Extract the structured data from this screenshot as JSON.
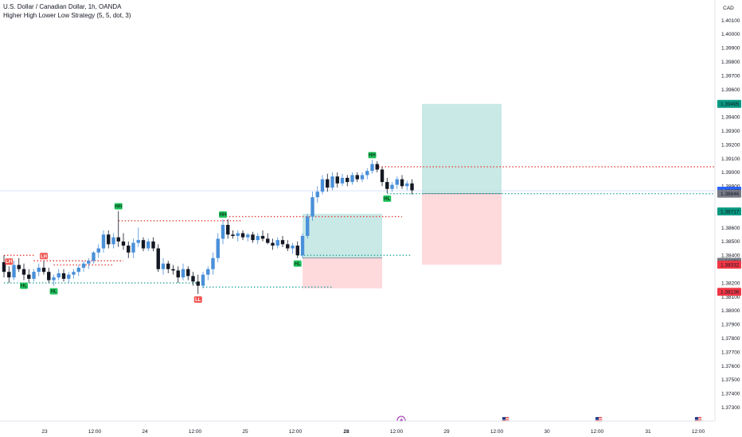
{
  "header": {
    "symbol_line": "U.S. Dollar / Canadian Dollar, 1h, OANDA",
    "indicator_line": "Higher High Lower Low Strategy (5, 5, dot, 3)"
  },
  "currency_label": "CAD",
  "colors": {
    "up": "#2962ff",
    "up_light": "#4a90d9",
    "down": "#131722",
    "bull_tag": "#22c55e",
    "bear_tag": "#ef5350",
    "red_dots": "#e53935",
    "green_dots": "#26a69a",
    "profit_zone": "#b2dfdb",
    "loss_zone": "#ffcdd2",
    "price_tag_blue": "#2962ff",
    "price_tag_green": "#089981",
    "price_tag_red": "#f23645",
    "price_tag_gray": "#787b86"
  },
  "chart_data": {
    "type": "candlestick",
    "y_axis": {
      "min": 1.373,
      "max": 1.402,
      "ticks": [
        "1.40100",
        "1.40000",
        "1.39900",
        "1.39800",
        "1.39700",
        "1.39600",
        "1.39400",
        "1.39300",
        "1.39200",
        "1.39100",
        "1.39000",
        "1.38900",
        "1.38600",
        "1.38500",
        "1.38400",
        "1.38200",
        "1.38100",
        "1.38000",
        "1.37900",
        "1.37800",
        "1.37700",
        "1.37600",
        "1.37500",
        "1.37400",
        "1.37300"
      ]
    },
    "x_axis": {
      "labels": [
        "23",
        "12:00",
        "24",
        "12:00",
        "25",
        "12:00",
        "28",
        "12:00",
        "29",
        "12:00",
        "30",
        "12:00",
        "31",
        "12:00"
      ],
      "bold_labels": [
        "28"
      ]
    },
    "price_tags": [
      {
        "value": "1.39495",
        "color": "#089981"
      },
      {
        "value": "1.38867",
        "color": "#2962ff"
      },
      {
        "value": "1.38846",
        "color": "#787b86"
      },
      {
        "value": "1.38717",
        "color": "#089981"
      },
      {
        "value": "1.38353",
        "color": "#787b86"
      },
      {
        "value": "1.38332",
        "color": "#f23645"
      },
      {
        "value": "1.38136",
        "color": "#f23645"
      }
    ],
    "candles": [
      [
        1.3835,
        1.384,
        1.3824,
        1.3828
      ],
      [
        1.3828,
        1.3832,
        1.382,
        1.3824
      ],
      [
        1.3824,
        1.3836,
        1.3822,
        1.3833
      ],
      [
        1.3833,
        1.3838,
        1.3828,
        1.383
      ],
      [
        1.383,
        1.3834,
        1.3822,
        1.3826
      ],
      [
        1.3826,
        1.383,
        1.382,
        1.3823
      ],
      [
        1.3823,
        1.383,
        1.3821,
        1.3828
      ],
      [
        1.3828,
        1.3834,
        1.3825,
        1.3831
      ],
      [
        1.3831,
        1.3836,
        1.3826,
        1.3828
      ],
      [
        1.3828,
        1.3831,
        1.382,
        1.3822
      ],
      [
        1.3822,
        1.3826,
        1.3818,
        1.3824
      ],
      [
        1.3824,
        1.383,
        1.3822,
        1.3827
      ],
      [
        1.3827,
        1.383,
        1.3821,
        1.3823
      ],
      [
        1.3823,
        1.3828,
        1.382,
        1.3826
      ],
      [
        1.3826,
        1.383,
        1.3823,
        1.3828
      ],
      [
        1.3828,
        1.3833,
        1.3825,
        1.3831
      ],
      [
        1.3831,
        1.3836,
        1.3828,
        1.3834
      ],
      [
        1.3834,
        1.3838,
        1.383,
        1.3836
      ],
      [
        1.3836,
        1.3843,
        1.3834,
        1.3842
      ],
      [
        1.3842,
        1.3848,
        1.3838,
        1.3845
      ],
      [
        1.3845,
        1.3858,
        1.3842,
        1.3855
      ],
      [
        1.3855,
        1.3858,
        1.3845,
        1.3848
      ],
      [
        1.3848,
        1.3856,
        1.3845,
        1.3853
      ],
      [
        1.3853,
        1.3872,
        1.3846,
        1.385
      ],
      [
        1.385,
        1.3856,
        1.3844,
        1.3847
      ],
      [
        1.3847,
        1.385,
        1.3838,
        1.3842
      ],
      [
        1.3842,
        1.3852,
        1.3838,
        1.3849
      ],
      [
        1.3849,
        1.386,
        1.3846,
        1.3851
      ],
      [
        1.3851,
        1.3853,
        1.3843,
        1.3845
      ],
      [
        1.3845,
        1.3852,
        1.3843,
        1.385
      ],
      [
        1.385,
        1.3853,
        1.3843,
        1.3845
      ],
      [
        1.3845,
        1.3848,
        1.3828,
        1.383
      ],
      [
        1.383,
        1.3838,
        1.3826,
        1.3834
      ],
      [
        1.3834,
        1.3836,
        1.3827,
        1.383
      ],
      [
        1.383,
        1.3833,
        1.3826,
        1.3829
      ],
      [
        1.3829,
        1.3832,
        1.382,
        1.3824
      ],
      [
        1.3824,
        1.3834,
        1.3822,
        1.383
      ],
      [
        1.383,
        1.3832,
        1.3822,
        1.3825
      ],
      [
        1.3825,
        1.3828,
        1.3818,
        1.3821
      ],
      [
        1.3821,
        1.3826,
        1.3812,
        1.3818
      ],
      [
        1.3818,
        1.3828,
        1.3816,
        1.3826
      ],
      [
        1.3826,
        1.3832,
        1.3822,
        1.383
      ],
      [
        1.383,
        1.3842,
        1.3826,
        1.3838
      ],
      [
        1.3838,
        1.3856,
        1.3835,
        1.3852
      ],
      [
        1.3852,
        1.3866,
        1.3848,
        1.3862
      ],
      [
        1.3862,
        1.3866,
        1.3852,
        1.3855
      ],
      [
        1.3855,
        1.3858,
        1.3852,
        1.3854
      ],
      [
        1.3854,
        1.3858,
        1.385,
        1.3856
      ],
      [
        1.3856,
        1.3858,
        1.3851,
        1.3853
      ],
      [
        1.3853,
        1.3856,
        1.385,
        1.3855
      ],
      [
        1.3855,
        1.3857,
        1.3849,
        1.3851
      ],
      [
        1.3851,
        1.3856,
        1.3848,
        1.3854
      ],
      [
        1.3854,
        1.3858,
        1.385,
        1.3852
      ],
      [
        1.3852,
        1.3856,
        1.3848,
        1.3849
      ],
      [
        1.3849,
        1.3852,
        1.3844,
        1.3847
      ],
      [
        1.3847,
        1.3853,
        1.3845,
        1.3851
      ],
      [
        1.3851,
        1.3854,
        1.3846,
        1.3848
      ],
      [
        1.3848,
        1.3851,
        1.3843,
        1.3845
      ],
      [
        1.3845,
        1.3849,
        1.3841,
        1.3847
      ],
      [
        1.3847,
        1.385,
        1.3838,
        1.384
      ],
      [
        1.384,
        1.3856,
        1.3838,
        1.3854
      ],
      [
        1.3854,
        1.387,
        1.3852,
        1.3868
      ],
      [
        1.3868,
        1.3886,
        1.3865,
        1.3882
      ],
      [
        1.3882,
        1.389,
        1.3878,
        1.3886
      ],
      [
        1.3886,
        1.3898,
        1.3884,
        1.3895
      ],
      [
        1.3895,
        1.3899,
        1.3886,
        1.3889
      ],
      [
        1.3889,
        1.39,
        1.3887,
        1.3897
      ],
      [
        1.3897,
        1.39,
        1.3889,
        1.3892
      ],
      [
        1.3892,
        1.3899,
        1.389,
        1.3896
      ],
      [
        1.3896,
        1.3898,
        1.389,
        1.3893
      ],
      [
        1.3893,
        1.39,
        1.3891,
        1.3898
      ],
      [
        1.3898,
        1.39,
        1.3893,
        1.3895
      ],
      [
        1.3895,
        1.39,
        1.3893,
        1.3898
      ],
      [
        1.3898,
        1.3903,
        1.3895,
        1.3901
      ],
      [
        1.3901,
        1.3909,
        1.3899,
        1.3906
      ],
      [
        1.3906,
        1.3908,
        1.39,
        1.3902
      ],
      [
        1.3902,
        1.3904,
        1.389,
        1.3893
      ],
      [
        1.3893,
        1.3896,
        1.3885,
        1.3888
      ],
      [
        1.3888,
        1.3893,
        1.3886,
        1.3891
      ],
      [
        1.3891,
        1.3897,
        1.3888,
        1.3895
      ],
      [
        1.3895,
        1.3898,
        1.3888,
        1.389
      ],
      [
        1.389,
        1.3894,
        1.3887,
        1.3892
      ],
      [
        1.3892,
        1.3895,
        1.3884,
        1.3887
      ]
    ],
    "pivot_labels": [
      {
        "text": "LH",
        "type": "bear",
        "bar": 1,
        "pos": "above"
      },
      {
        "text": "HL",
        "type": "bull",
        "bar": 4,
        "pos": "below"
      },
      {
        "text": "LH",
        "type": "bear",
        "bar": 8,
        "pos": "above"
      },
      {
        "text": "HL",
        "type": "bull",
        "bar": 10,
        "pos": "below"
      },
      {
        "text": "HH",
        "type": "bull",
        "bar": 23,
        "pos": "above"
      },
      {
        "text": "LL",
        "type": "bear",
        "bar": 39,
        "pos": "below"
      },
      {
        "text": "HH",
        "type": "bull",
        "bar": 44,
        "pos": "above"
      },
      {
        "text": "HL",
        "type": "bull",
        "bar": 59,
        "pos": "below"
      },
      {
        "text": "HH",
        "type": "bull",
        "bar": 74,
        "pos": "above"
      },
      {
        "text": "HL",
        "type": "bull",
        "bar": 77,
        "pos": "below"
      }
    ],
    "levels": [
      {
        "color": "red",
        "price": 1.384,
        "from": 0,
        "to": 6
      },
      {
        "color": "red",
        "price": 1.3836,
        "from": 6,
        "to": 24
      },
      {
        "color": "red",
        "price": 1.3833,
        "from": 10,
        "to": 22
      },
      {
        "color": "green",
        "price": 1.382,
        "from": 0,
        "to": 40
      },
      {
        "color": "green",
        "price": 1.3817,
        "from": 40,
        "to": 66
      },
      {
        "color": "red",
        "price": 1.3865,
        "from": 23,
        "to": 48
      },
      {
        "color": "red",
        "price": 1.3868,
        "from": 44,
        "to": 80
      },
      {
        "color": "green",
        "price": 1.384,
        "from": 59,
        "to": 82
      },
      {
        "color": "red",
        "price": 1.3904,
        "from": 74,
        "to": 146
      },
      {
        "color": "green",
        "price": 1.38846,
        "from": 77,
        "to": 146
      }
    ],
    "positions": [
      {
        "from": 60,
        "to": 76,
        "entry": 1.3838,
        "target": 1.387,
        "stop": 1.3816
      },
      {
        "from": 84,
        "to": 100,
        "entry": 1.38846,
        "target": 1.39495,
        "stop": 1.38332
      }
    ]
  }
}
